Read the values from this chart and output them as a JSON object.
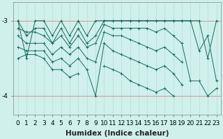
{
  "xlabel": "Humidex (Indice chaleur)",
  "bg_color": "#cff0eb",
  "line_color": "#1a6b5e",
  "grid_color_v": "#b8ddd8",
  "grid_color_h": "#d4a0a0",
  "x_values": [
    0,
    1,
    2,
    3,
    4,
    5,
    6,
    7,
    8,
    9,
    10,
    11,
    12,
    13,
    14,
    15,
    16,
    17,
    18,
    19,
    20,
    21,
    22,
    23
  ],
  "series": [
    [
      -3.0,
      -3.5,
      -3.0,
      -3.0,
      -3.2,
      -3.0,
      -3.2,
      -3.0,
      -3.2,
      -3.0,
      -3.0,
      -3.0,
      -3.0,
      -3.0,
      -3.0,
      -3.0,
      -3.0,
      -3.0,
      -3.0,
      -3.0,
      -3.0,
      -3.0,
      -3.5,
      -3.0
    ],
    [
      -3.0,
      -3.2,
      -3.1,
      -3.1,
      -3.3,
      -3.1,
      -3.3,
      -3.1,
      -3.3,
      -3.2,
      -3.0,
      -3.0,
      -3.0,
      -3.0,
      -3.0,
      -3.0,
      -3.0,
      -3.0,
      -3.0,
      -3.0,
      -3.0,
      -3.4,
      -3.2,
      -3.8
    ],
    [
      -3.1,
      -3.15,
      -3.15,
      -3.2,
      -3.3,
      -3.2,
      -3.35,
      -3.2,
      -3.35,
      -3.3,
      -3.05,
      -3.1,
      -3.1,
      -3.1,
      -3.1,
      -3.1,
      -3.15,
      -3.1,
      -3.2,
      -3.3,
      -3.8,
      -3.8,
      -4.0,
      -3.9
    ],
    [
      -3.2,
      -3.3,
      -3.3,
      -3.3,
      -3.45,
      -3.35,
      -3.45,
      -3.35,
      -3.5,
      -3.55,
      -3.15,
      -3.2,
      -3.2,
      -3.25,
      -3.3,
      -3.35,
      -3.4,
      -3.35,
      -3.45,
      -3.55,
      null,
      null,
      null,
      null
    ],
    [
      -3.35,
      -3.4,
      -3.4,
      -3.4,
      -3.55,
      -3.5,
      -3.6,
      -3.5,
      -3.65,
      -4.0,
      -3.3,
      -3.4,
      -3.45,
      -3.5,
      -3.55,
      -3.6,
      -3.65,
      -3.6,
      -3.7,
      -3.85,
      null,
      null,
      null,
      null
    ],
    [
      -3.5,
      -3.45,
      -3.45,
      -3.5,
      -3.65,
      -3.65,
      -3.75,
      -3.7,
      null,
      null,
      -3.6,
      -3.65,
      -3.7,
      -3.8,
      -3.85,
      -3.9,
      -3.95,
      -3.9,
      -4.0,
      null,
      null,
      null,
      null,
      null
    ]
  ],
  "ylim": [
    -4.25,
    -2.75
  ],
  "xlim": [
    -0.5,
    23.5
  ],
  "yticks": [
    -4.0,
    -3.0
  ],
  "ytick_labels": [
    "-4",
    "-3"
  ],
  "xticks": [
    0,
    1,
    2,
    3,
    4,
    5,
    6,
    7,
    8,
    9,
    10,
    11,
    12,
    13,
    14,
    15,
    16,
    17,
    18,
    19,
    20,
    21,
    22,
    23
  ],
  "tick_fontsize": 6.5,
  "label_fontsize": 7.5
}
